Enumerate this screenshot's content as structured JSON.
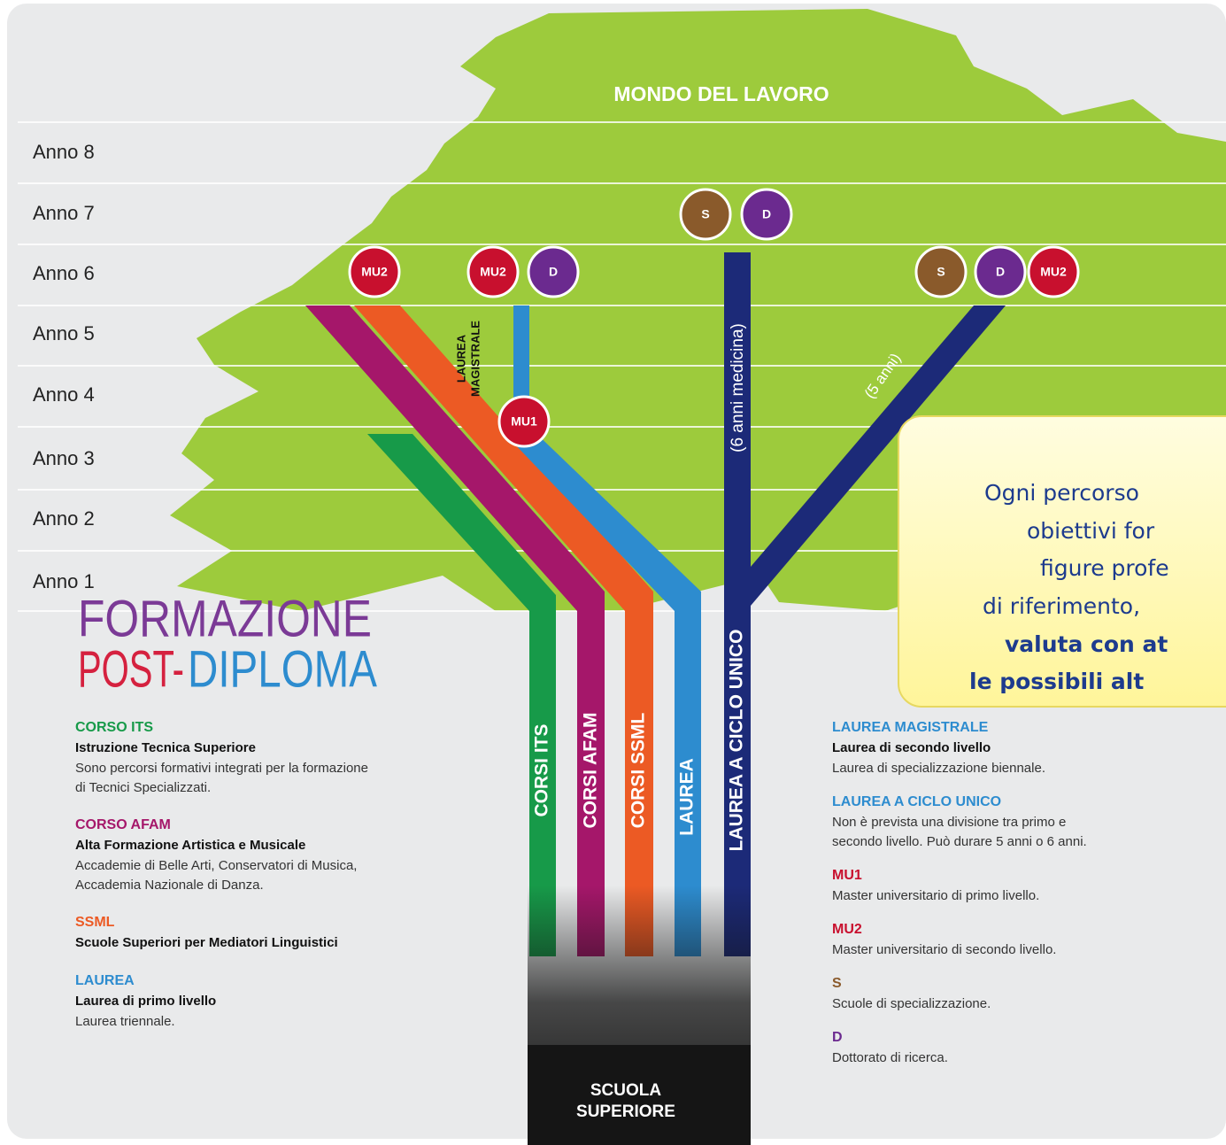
{
  "header": {
    "title": "MONDO DEL LAVORO"
  },
  "years": [
    "Anno 8",
    "Anno 7",
    "Anno 6",
    "Anno 5",
    "Anno 4",
    "Anno 3",
    "Anno 2",
    "Anno 1"
  ],
  "badges": [
    "MU2",
    "MU2",
    "D",
    "S",
    "D",
    "S",
    "D",
    "MU2",
    "MU1"
  ],
  "branches": {
    "its": "CORSI ITS",
    "afam": "CORSI AFAM",
    "ssml": "CORSI SSML",
    "laurea": "LAUREA",
    "ciclo_unico": "LAUREA A CICLO UNICO",
    "magistrale": [
      "LAUREA",
      "MAGISTRALE"
    ],
    "medicina": "(6 anni medicina)",
    "cinque_anni": "(5 anni)"
  },
  "trunk": [
    "SCUOLA",
    "SUPERIORE"
  ],
  "title": {
    "line1": "FORMAZIONE",
    "post": "POST-",
    "diploma": "DIPLOMA"
  },
  "legend_left": [
    {
      "heading": "CORSO ITS",
      "subtitle": "Istruzione Tecnica Superiore",
      "lines": [
        "Sono percorsi formativi integrati per la formazione",
        "di Tecnici Specializzati."
      ]
    },
    {
      "heading": "CORSO AFAM",
      "subtitle": "Alta Formazione Artistica e Musicale",
      "lines": [
        "Accademie di  Belle Arti, Conservatori di Musica,",
        "Accademia Nazionale di Danza."
      ]
    },
    {
      "heading": "SSML",
      "subtitle": "Scuole Superiori per Mediatori Linguistici"
    },
    {
      "heading": "LAUREA",
      "subtitle": "Laurea di primo livello",
      "lines": [
        "Laurea triennale."
      ]
    }
  ],
  "legend_right": [
    {
      "heading": "LAUREA MAGISTRALE",
      "subtitle": "Laurea di secondo livello",
      "lines": [
        "Laurea di specializzazione biennale."
      ]
    },
    {
      "heading": "LAUREA A CICLO UNICO",
      "lines": [
        "Non è prevista una divisione tra primo e",
        "secondo livello. Può durare 5 anni o 6 anni."
      ]
    },
    {
      "heading": "MU1",
      "lines": [
        "Master universitario di primo livello."
      ]
    },
    {
      "heading": "MU2",
      "lines": [
        "Master universitario di secondo livello."
      ]
    },
    {
      "heading": "S",
      "lines": [
        "Scuole di specializzazione."
      ]
    },
    {
      "heading": "D",
      "lines": [
        "Dottorato di ricerca."
      ]
    }
  ],
  "callout": [
    "Ogni percorso",
    "obiettivi for",
    "figure profe",
    "di riferimento,",
    "valuta con at",
    "le possibili alt"
  ]
}
